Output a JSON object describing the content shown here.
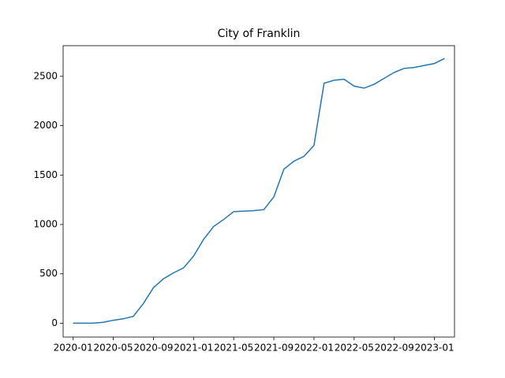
{
  "chart_data": {
    "type": "line",
    "title": "City of Franklin",
    "x": [
      "2020-01",
      "2020-02",
      "2020-03",
      "2020-04",
      "2020-05",
      "2020-06",
      "2020-07",
      "2020-08",
      "2020-09",
      "2020-10",
      "2020-11",
      "2020-12",
      "2021-01",
      "2021-02",
      "2021-03",
      "2021-04",
      "2021-05",
      "2021-06",
      "2021-07",
      "2021-08",
      "2021-09",
      "2021-10",
      "2021-11",
      "2021-12",
      "2022-01",
      "2022-02",
      "2022-03",
      "2022-04",
      "2022-05",
      "2022-06",
      "2022-07",
      "2022-08",
      "2022-09",
      "2022-10",
      "2022-11",
      "2022-12",
      "2023-01",
      "2023-02"
    ],
    "series": [
      {
        "color": "#1f77b4",
        "values": [
          0,
          0,
          0,
          10,
          30,
          45,
          70,
          200,
          360,
          450,
          510,
          560,
          680,
          850,
          980,
          1050,
          1130,
          1135,
          1140,
          1150,
          1280,
          1560,
          1640,
          1690,
          1800,
          2430,
          2460,
          2470,
          2400,
          2380,
          2420,
          2480,
          2540,
          2580,
          2590,
          2610,
          2630,
          2680
        ]
      }
    ],
    "xlim": [
      "2019-12",
      "2023-03"
    ],
    "xticks": [
      "2020-01",
      "2020-05",
      "2020-09",
      "2021-01",
      "2021-05",
      "2021-09",
      "2022-01",
      "2022-05",
      "2022-09",
      "2023-01"
    ],
    "ylim": [
      -140,
      2810
    ],
    "yticks": [
      0,
      500,
      1000,
      1500,
      2000,
      2500
    ]
  }
}
